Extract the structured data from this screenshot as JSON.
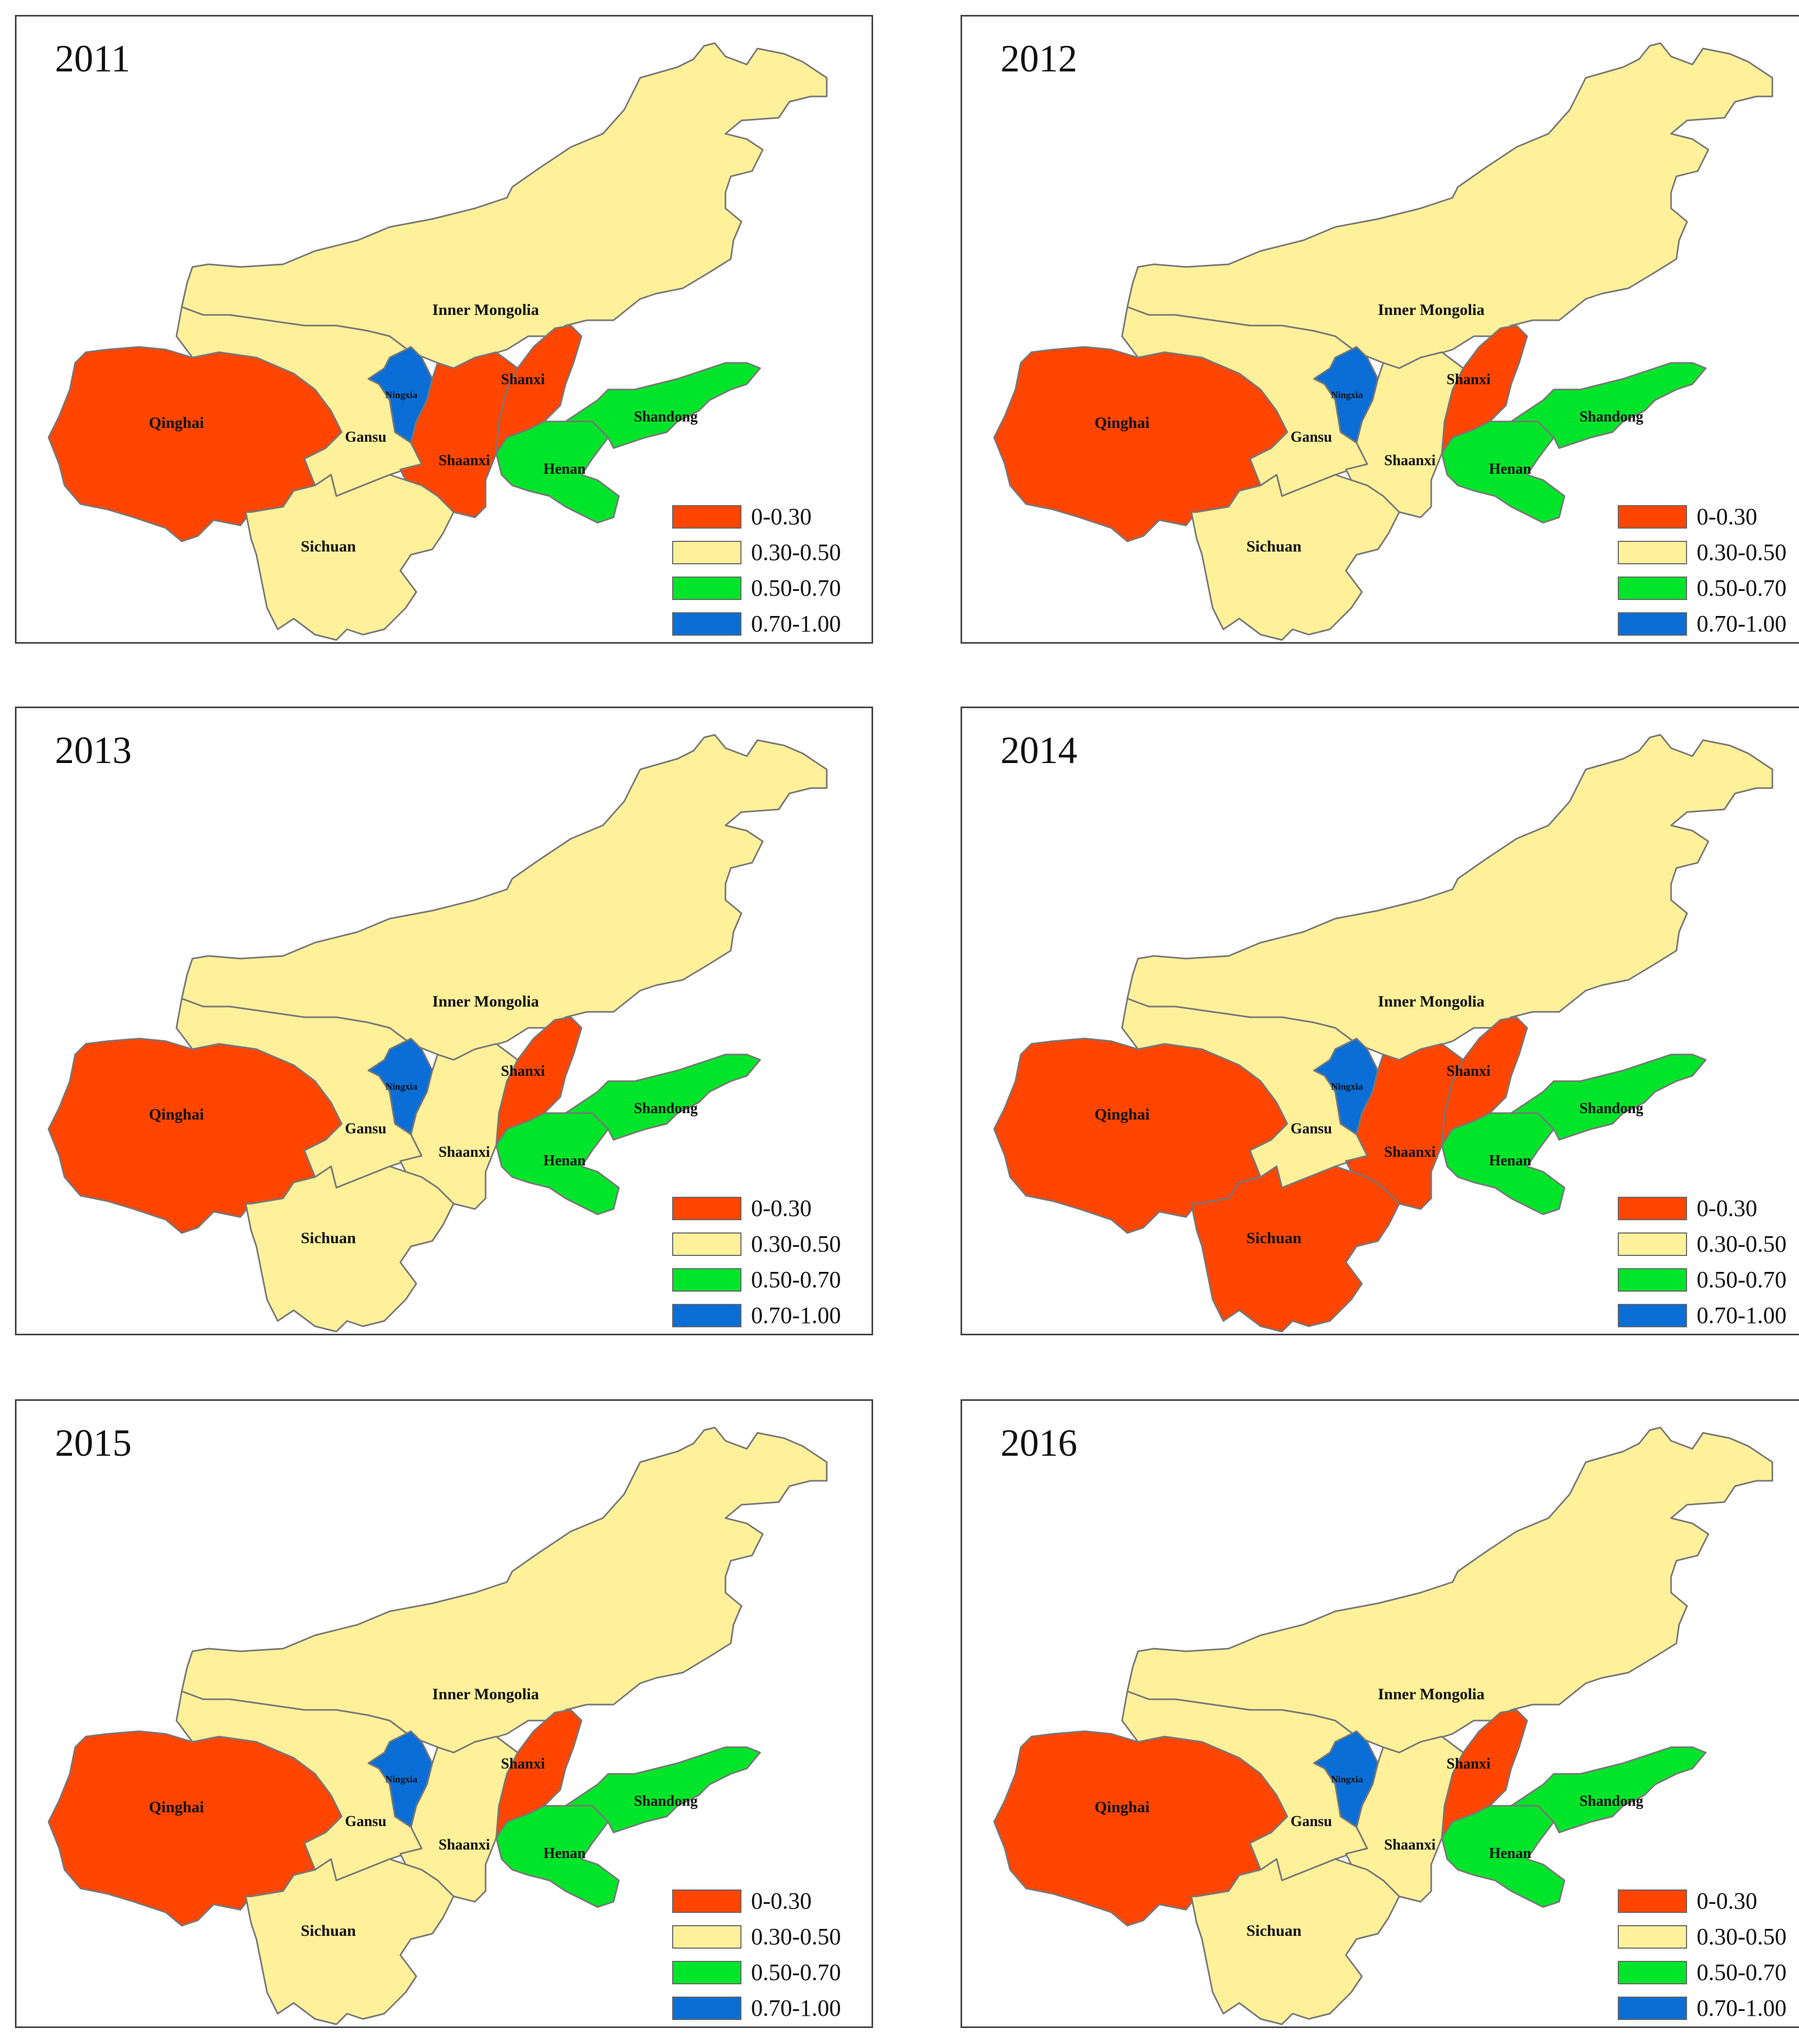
{
  "legend": [
    {
      "label": "0-0.30",
      "color": "#ff4500"
    },
    {
      "label": "0.30-0.50",
      "color": "#fff09a"
    },
    {
      "label": "0.50-0.70",
      "color": "#00e52a"
    },
    {
      "label": "0.70-1.00",
      "color": "#0a6ed6"
    }
  ],
  "provinces": [
    {
      "key": "inner_mongolia",
      "label": "Inner Mongolia"
    },
    {
      "key": "qinghai",
      "label": "Qinghai"
    },
    {
      "key": "gansu",
      "label": "Gansu"
    },
    {
      "key": "ningxia",
      "label": "Ningxia"
    },
    {
      "key": "shanxi",
      "label": "Shanxi"
    },
    {
      "key": "shaanxi",
      "label": "Shaanxi"
    },
    {
      "key": "henan",
      "label": "Henan"
    },
    {
      "key": "shandong",
      "label": "Shandong"
    },
    {
      "key": "sichuan",
      "label": "Sichuan"
    }
  ],
  "panels": [
    {
      "year": "2011",
      "classes": {
        "inner_mongolia": 1,
        "qinghai": 0,
        "gansu": 1,
        "ningxia": 3,
        "shanxi": 0,
        "shaanxi": 0,
        "henan": 2,
        "shandong": 2,
        "sichuan": 1
      }
    },
    {
      "year": "2012",
      "classes": {
        "inner_mongolia": 1,
        "qinghai": 0,
        "gansu": 1,
        "ningxia": 3,
        "shanxi": 0,
        "shaanxi": 1,
        "henan": 2,
        "shandong": 2,
        "sichuan": 1
      }
    },
    {
      "year": "2013",
      "classes": {
        "inner_mongolia": 1,
        "qinghai": 0,
        "gansu": 1,
        "ningxia": 3,
        "shanxi": 0,
        "shaanxi": 1,
        "henan": 2,
        "shandong": 2,
        "sichuan": 1
      }
    },
    {
      "year": "2014",
      "classes": {
        "inner_mongolia": 1,
        "qinghai": 0,
        "gansu": 1,
        "ningxia": 3,
        "shanxi": 0,
        "shaanxi": 0,
        "henan": 2,
        "shandong": 2,
        "sichuan": 0
      }
    },
    {
      "year": "2015",
      "classes": {
        "inner_mongolia": 1,
        "qinghai": 0,
        "gansu": 1,
        "ningxia": 3,
        "shanxi": 0,
        "shaanxi": 1,
        "henan": 2,
        "shandong": 2,
        "sichuan": 1
      }
    },
    {
      "year": "2016",
      "classes": {
        "inner_mongolia": 1,
        "qinghai": 0,
        "gansu": 1,
        "ningxia": 3,
        "shanxi": 0,
        "shaanxi": 1,
        "henan": 2,
        "shandong": 2,
        "sichuan": 1
      }
    }
  ]
}
